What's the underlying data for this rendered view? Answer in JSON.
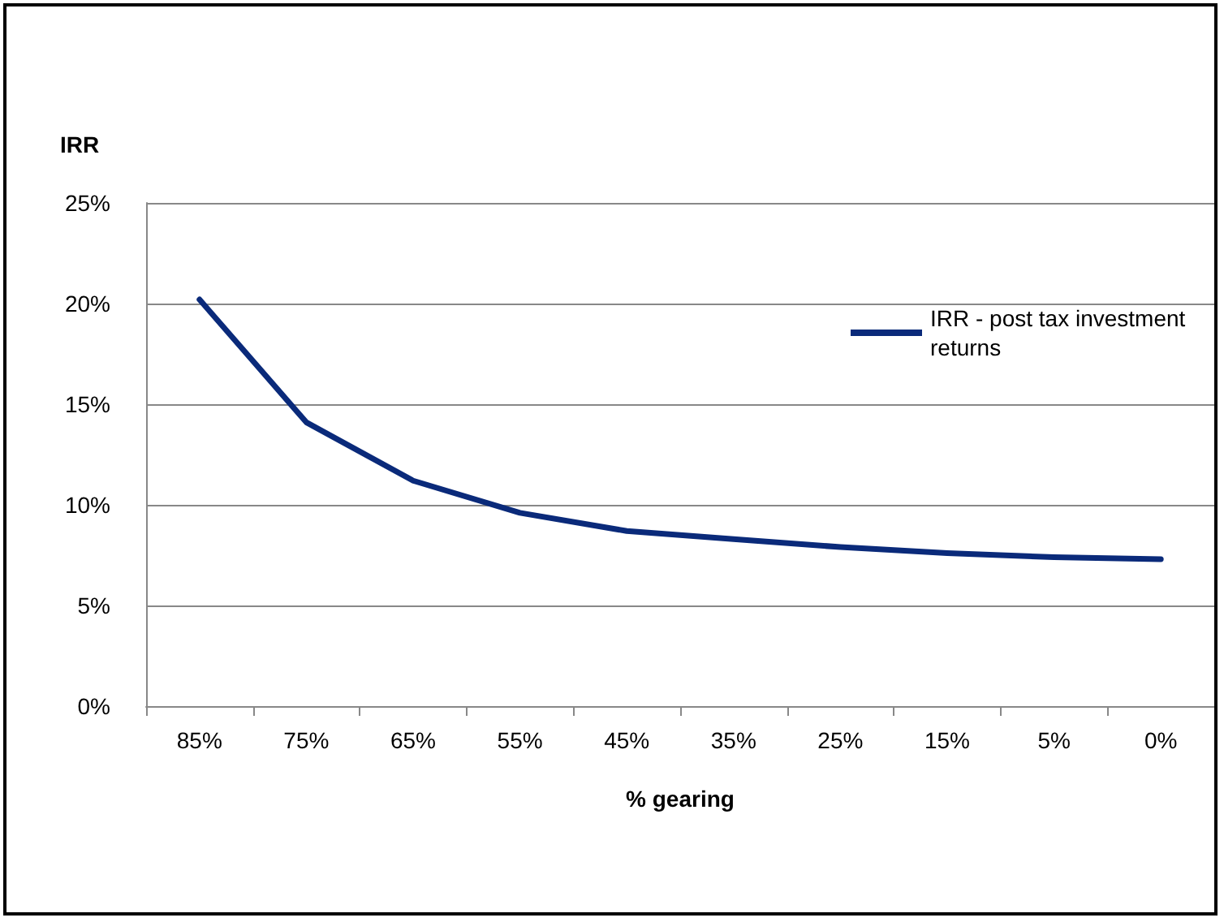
{
  "chart_data": {
    "type": "line",
    "ylabel": "IRR",
    "xlabel": "% gearing",
    "categories": [
      "85%",
      "75%",
      "65%",
      "55%",
      "45%",
      "35%",
      "25%",
      "15%",
      "5%",
      "0%"
    ],
    "series": [
      {
        "name": "IRR - post tax investment returns",
        "color": "#0a2a7a",
        "values": [
          20.2,
          14.1,
          11.2,
          9.6,
          8.7,
          8.3,
          7.9,
          7.6,
          7.4,
          7.3
        ]
      }
    ],
    "ylim": [
      0,
      25
    ],
    "yticks": [
      {
        "value": 0,
        "label": "0%"
      },
      {
        "value": 5,
        "label": "5%"
      },
      {
        "value": 10,
        "label": "10%"
      },
      {
        "value": 15,
        "label": "15%"
      },
      {
        "value": 20,
        "label": "20%"
      },
      {
        "value": 25,
        "label": "25%"
      }
    ],
    "grid": "y",
    "legend": "right",
    "marker": "none",
    "line_style": "solid"
  }
}
